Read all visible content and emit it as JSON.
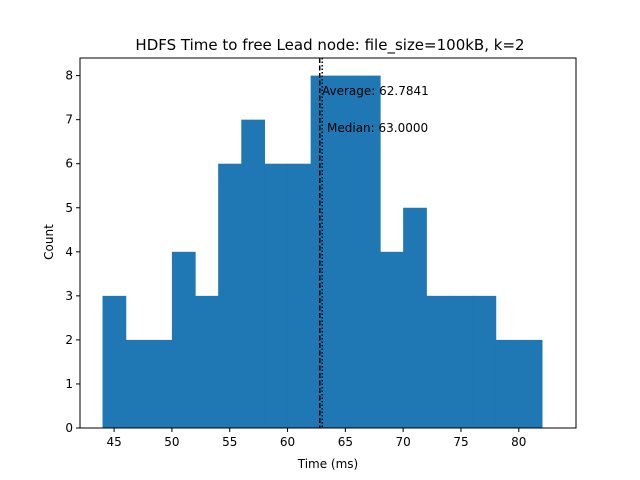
{
  "chart_data": {
    "type": "bar",
    "title": "HDFS Time to free Lead node: file_size=100kB, k=2",
    "xlabel": "Time (ms)",
    "ylabel": "Count",
    "xlim": [
      42.05,
      84.95
    ],
    "ylim": [
      0,
      8.4
    ],
    "xticks": [
      45,
      50,
      55,
      60,
      65,
      70,
      75,
      80
    ],
    "yticks": [
      0,
      1,
      2,
      3,
      4,
      5,
      6,
      7,
      8
    ],
    "bins": [
      {
        "x0": 44.0,
        "x1": 46.0,
        "count": 3
      },
      {
        "x0": 46.0,
        "x1": 48.0,
        "count": 2
      },
      {
        "x0": 48.0,
        "x1": 50.0,
        "count": 2
      },
      {
        "x0": 50.0,
        "x1": 52.0,
        "count": 4
      },
      {
        "x0": 52.0,
        "x1": 54.0,
        "count": 3
      },
      {
        "x0": 54.0,
        "x1": 56.0,
        "count": 6
      },
      {
        "x0": 56.0,
        "x1": 58.0,
        "count": 7
      },
      {
        "x0": 58.0,
        "x1": 60.0,
        "count": 6
      },
      {
        "x0": 60.0,
        "x1": 62.0,
        "count": 6
      },
      {
        "x0": 62.0,
        "x1": 64.0,
        "count": 8
      },
      {
        "x0": 64.0,
        "x1": 66.0,
        "count": 8
      },
      {
        "x0": 66.0,
        "x1": 68.0,
        "count": 8
      },
      {
        "x0": 68.0,
        "x1": 70.0,
        "count": 4
      },
      {
        "x0": 70.0,
        "x1": 72.0,
        "count": 5
      },
      {
        "x0": 72.0,
        "x1": 74.0,
        "count": 3
      },
      {
        "x0": 74.0,
        "x1": 76.0,
        "count": 3
      },
      {
        "x0": 76.0,
        "x1": 78.0,
        "count": 3
      },
      {
        "x0": 78.0,
        "x1": 80.0,
        "count": 2
      },
      {
        "x0": 80.0,
        "x1": 82.0,
        "count": 2
      }
    ],
    "bar_color": "#1f77b4",
    "annotations": [
      {
        "name": "average",
        "value": 62.7841,
        "label": "Average: 62.7841",
        "line_style": "dashed",
        "line_color": "#000000"
      },
      {
        "name": "median",
        "value": 63.0,
        "label": "Median: 63.0000",
        "line_style": "dotted",
        "line_color": "#000000"
      }
    ],
    "grid": false,
    "legend": "none"
  }
}
